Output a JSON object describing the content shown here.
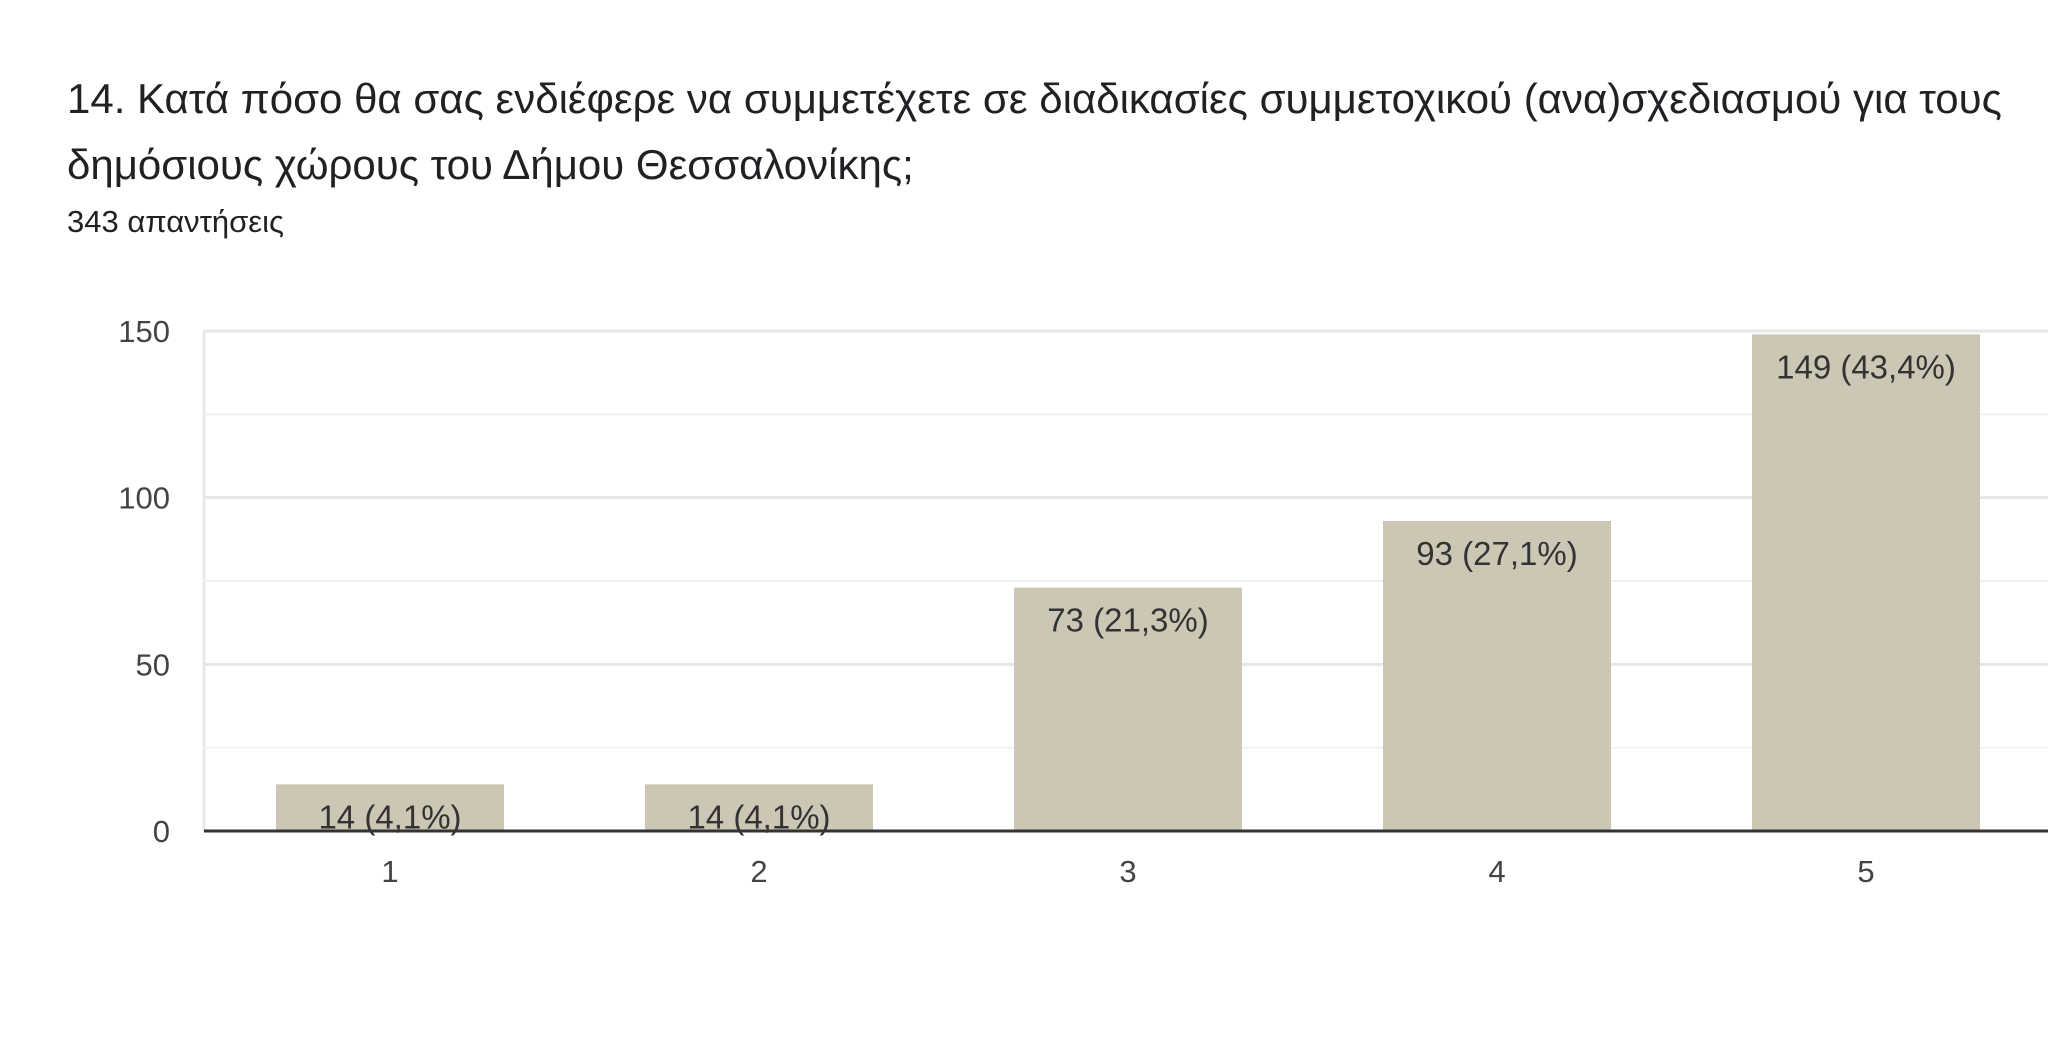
{
  "question": {
    "title": "14. Κατά πόσο θα σας ενδιέφερε να συμμετέχετε σε διαδικασίες συμμετοχικού (ανα)σχεδιασμού για τους δημόσιους χώρους του Δήμου Θεσσαλονίκης;",
    "response_count": "343 απαντήσεις"
  },
  "chart_data": {
    "type": "bar",
    "categories": [
      "1",
      "2",
      "3",
      "4",
      "5"
    ],
    "values": [
      14,
      14,
      73,
      93,
      149
    ],
    "data_labels": [
      "14 (4,1%)",
      "14 (4,1%)",
      "73 (21,3%)",
      "93 (27,1%)",
      "149 (43,4%)"
    ],
    "y_ticks": [
      0,
      50,
      100,
      150
    ],
    "ylim": [
      0,
      150
    ],
    "grid": true,
    "bar_color": "#ccc7b5",
    "gridline_color": "#e8e8e8",
    "axis_color": "#333333"
  }
}
